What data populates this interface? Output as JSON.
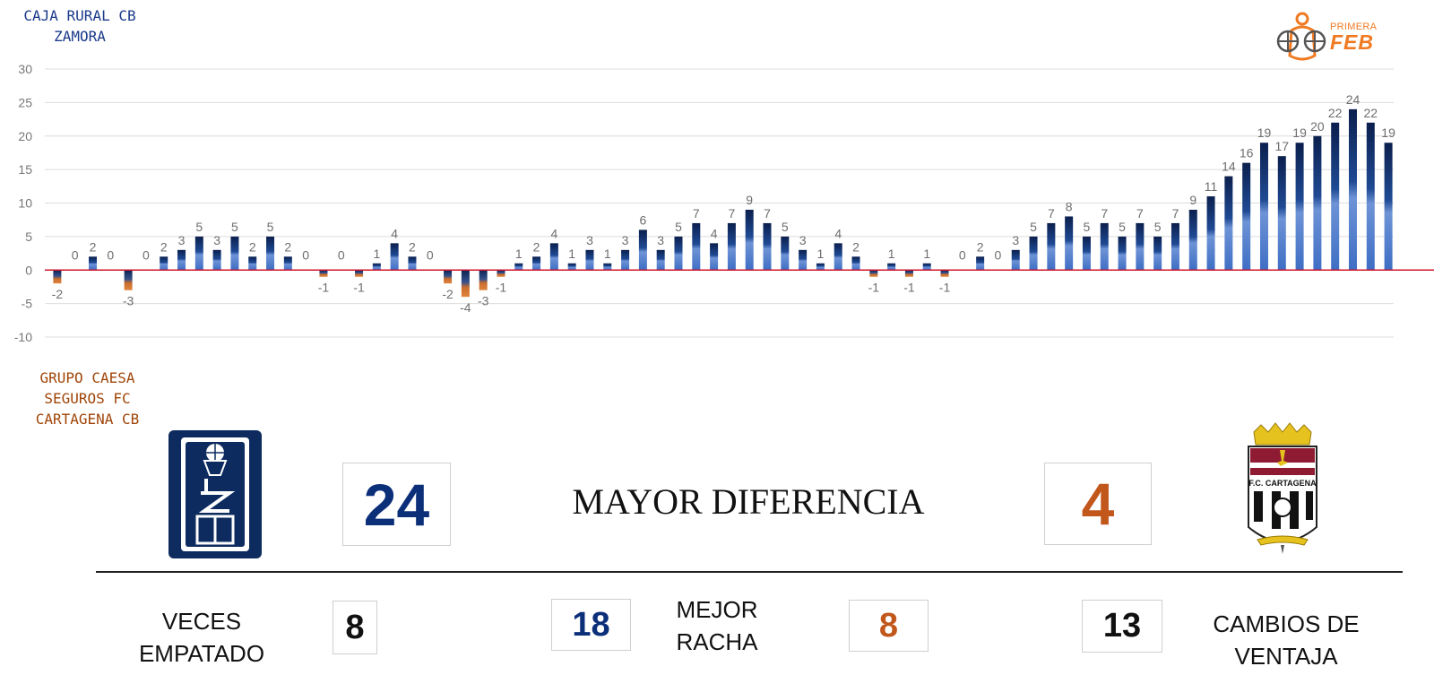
{
  "teams": {
    "home": "CAJA RURAL CB\nZAMORA",
    "away": "GRUPO CAESA\nSEGUROS FC\nCARTAGENA CB"
  },
  "league": {
    "primera": "PRIMERA",
    "feb": "FEB"
  },
  "away_logo_text": "F.C. CARTAGENA",
  "stats": {
    "max_diff_label": "MAYOR DIFERENCIA",
    "max_diff_home": "24",
    "max_diff_away": "4",
    "ties_label": "VECES\nEMPATADO",
    "ties_value": "8",
    "streak_label": "MEJOR\nRACHA",
    "streak_home": "18",
    "streak_away": "8",
    "lead_changes_label": "CAMBIOS DE\nVENTAJA",
    "lead_changes_value": "13"
  },
  "colors": {
    "home": "#0c2f7a",
    "away": "#c2571c",
    "zero_line": "#d0142c",
    "league": "#f07a22"
  },
  "chart_data": {
    "type": "bar",
    "title": "",
    "xlabel": "",
    "ylabel": "",
    "ylim": [
      -10,
      30
    ],
    "yticks": [
      30,
      25,
      20,
      15,
      10,
      5,
      0,
      -5,
      -10
    ],
    "grid": true,
    "values": [
      -2,
      0,
      2,
      0,
      -3,
      0,
      2,
      3,
      5,
      3,
      5,
      2,
      5,
      2,
      0,
      -1,
      0,
      -1,
      1,
      4,
      2,
      0,
      -2,
      -4,
      -3,
      -1,
      1,
      2,
      4,
      1,
      3,
      1,
      3,
      6,
      3,
      5,
      7,
      4,
      7,
      9,
      7,
      5,
      3,
      1,
      4,
      2,
      -1,
      1,
      -1,
      1,
      -1,
      0,
      2,
      0,
      3,
      5,
      7,
      8,
      5,
      7,
      5,
      7,
      5,
      7,
      9,
      11,
      14,
      16,
      19,
      17,
      19,
      20,
      22,
      24,
      22,
      19
    ]
  }
}
